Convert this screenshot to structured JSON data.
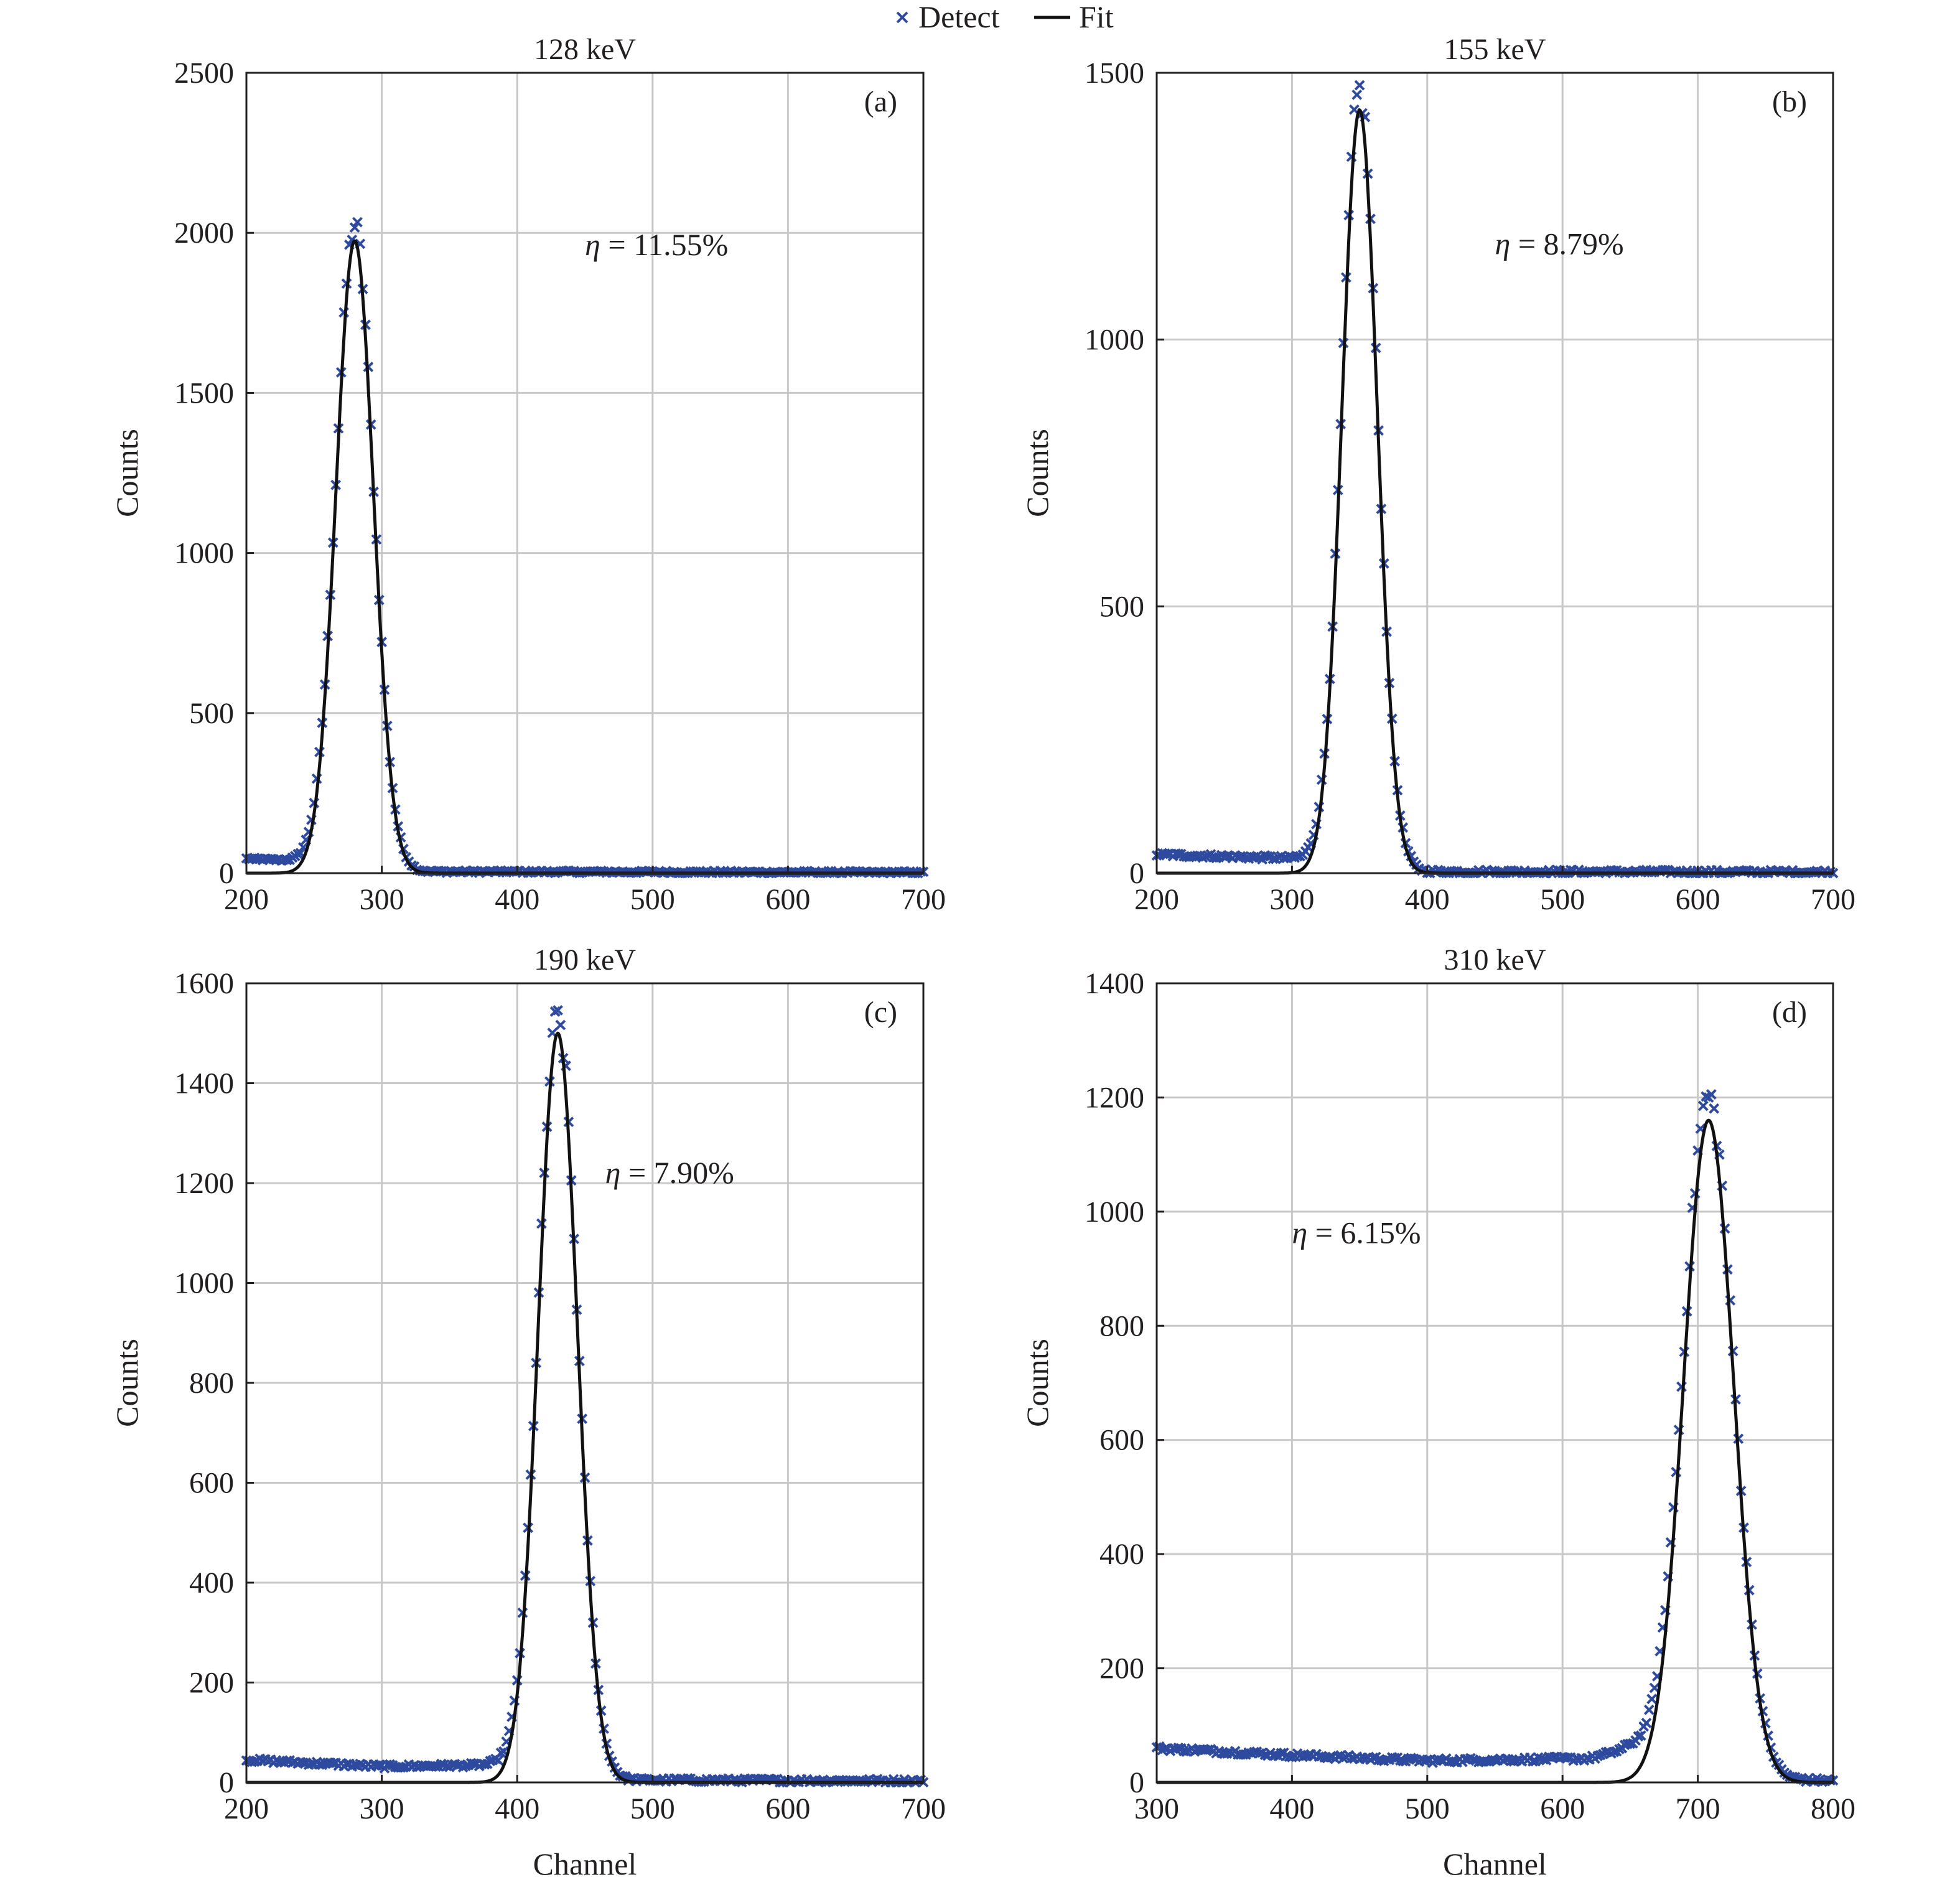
{
  "legend": {
    "detect_label": "Detect",
    "fit_label": "Fit",
    "colors": {
      "detect": "#2e4a9e",
      "fit": "#111111"
    }
  },
  "chart_data": [
    {
      "type": "scatter",
      "panel": "(a)",
      "title": "128 keV",
      "xlabel": "",
      "ylabel": "Counts",
      "xlim": [
        200,
        700
      ],
      "ylim": [
        0,
        2500
      ],
      "xticks": [
        200,
        300,
        400,
        500,
        600,
        700
      ],
      "yticks": [
        0,
        500,
        1000,
        1500,
        2000,
        2500
      ],
      "annotation": {
        "symbol": "η",
        "text": " = 11.55%",
        "x": 450,
        "y": 1930
      },
      "series": [
        {
          "name": "Detect",
          "kind": "markers",
          "background": [
            [
              200,
              45
            ],
            [
              230,
              40
            ],
            [
              330,
              5
            ],
            [
              700,
              2
            ]
          ],
          "peak": {
            "center": 280,
            "sigma": 13.8,
            "amplitude": 2000
          }
        },
        {
          "name": "Fit",
          "kind": "gaussian",
          "center": 280,
          "sigma": 13.8,
          "amplitude": 1975
        }
      ]
    },
    {
      "type": "scatter",
      "panel": "(b)",
      "title": "155 keV",
      "xlabel": "",
      "ylabel": "Counts",
      "xlim": [
        200,
        700
      ],
      "ylim": [
        0,
        1500
      ],
      "xticks": [
        200,
        300,
        400,
        500,
        600,
        700
      ],
      "yticks": [
        0,
        500,
        1000,
        1500
      ],
      "annotation": {
        "symbol": "η",
        "text": " = 8.79%",
        "x": 450,
        "y": 1160
      },
      "series": [
        {
          "name": "Detect",
          "kind": "markers",
          "background": [
            [
              200,
              35
            ],
            [
              300,
              28
            ],
            [
              400,
              3
            ],
            [
              700,
              2
            ]
          ],
          "peak": {
            "center": 350,
            "sigma": 13.1,
            "amplitude": 1450
          }
        },
        {
          "name": "Fit",
          "kind": "gaussian",
          "center": 350,
          "sigma": 13.1,
          "amplitude": 1430
        }
      ]
    },
    {
      "type": "scatter",
      "panel": "(c)",
      "title": "190 keV",
      "xlabel": "Channel",
      "ylabel": "Counts",
      "xlim": [
        200,
        700
      ],
      "ylim": [
        0,
        1600
      ],
      "xticks": [
        200,
        300,
        400,
        500,
        600,
        700
      ],
      "yticks": [
        0,
        200,
        400,
        600,
        800,
        1000,
        1200,
        1400,
        1600
      ],
      "annotation": {
        "symbol": "η",
        "text": " = 7.90%",
        "x": 465,
        "y": 1200
      },
      "series": [
        {
          "name": "Detect",
          "kind": "markers",
          "background": [
            [
              200,
              45
            ],
            [
              300,
              32
            ],
            [
              380,
              35
            ],
            [
              480,
              5
            ],
            [
              700,
              3
            ]
          ],
          "peak": {
            "center": 430,
            "sigma": 14.5,
            "amplitude": 1510
          }
        },
        {
          "name": "Fit",
          "kind": "gaussian",
          "center": 430,
          "sigma": 14.5,
          "amplitude": 1500
        }
      ]
    },
    {
      "type": "scatter",
      "panel": "(d)",
      "title": "310 keV",
      "xlabel": "Channel",
      "ylabel": "Counts",
      "xlim": [
        300,
        800
      ],
      "ylim": [
        0,
        1400
      ],
      "xticks": [
        300,
        400,
        500,
        600,
        700,
        800
      ],
      "yticks": [
        0,
        200,
        400,
        600,
        800,
        1000,
        1200,
        1400
      ],
      "annotation": {
        "symbol": "η",
        "text": " = 6.15%",
        "x": 400,
        "y": 945
      },
      "series": [
        {
          "name": "Detect",
          "kind": "markers",
          "background": [
            [
              300,
              60
            ],
            [
              400,
              48
            ],
            [
              500,
              38
            ],
            [
              620,
              42
            ],
            [
              650,
              60
            ],
            [
              760,
              5
            ],
            [
              800,
              3
            ]
          ],
          "peak": {
            "center": 708,
            "sigma": 18.5,
            "amplitude": 1170
          }
        },
        {
          "name": "Fit",
          "kind": "gaussian",
          "center": 708,
          "sigma": 18.5,
          "amplitude": 1160
        }
      ]
    }
  ]
}
